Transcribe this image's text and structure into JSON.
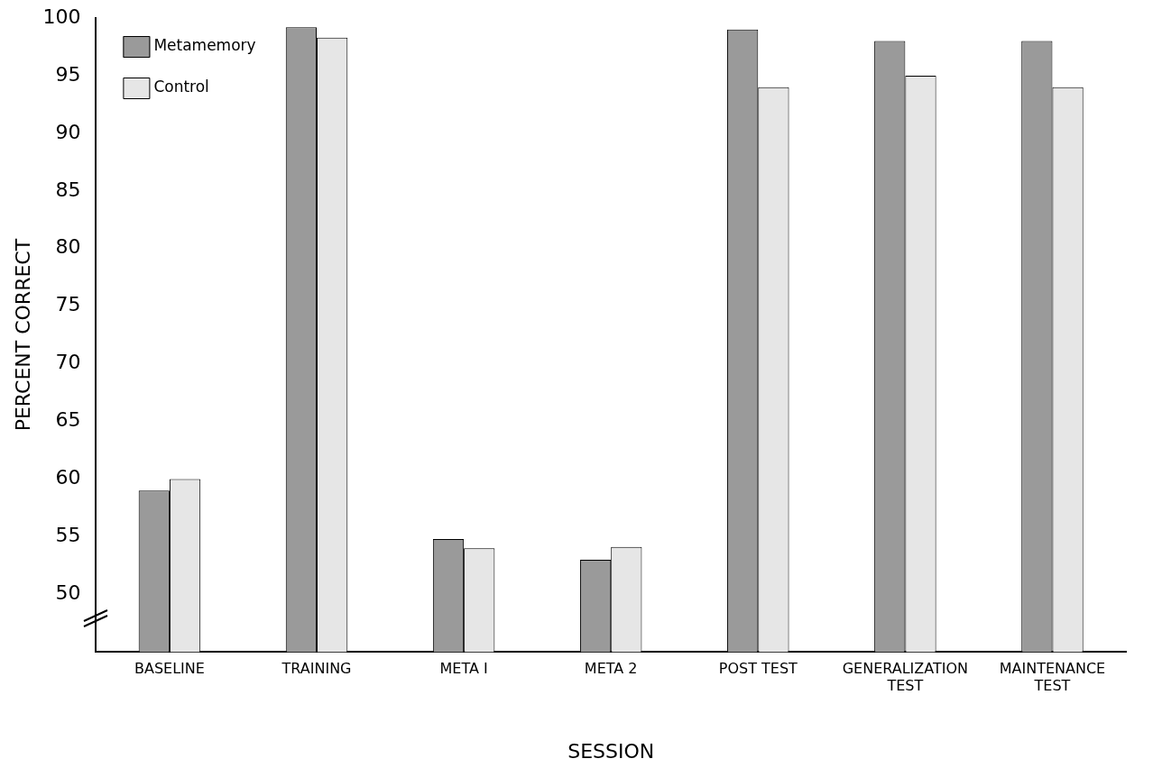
{
  "chart_data": {
    "type": "bar",
    "xlabel": "SESSION",
    "ylabel": "PERCENT CORRECT",
    "categories": [
      "BASELINE",
      "TRAINING",
      "META I",
      "META 2",
      "POST TEST",
      "GENERALIZATION TEST",
      "MAINTENANCE TEST"
    ],
    "series": [
      {
        "name": "Metamemory",
        "color": "#9a9a9a",
        "values": [
          59,
          99.2,
          54.8,
          53,
          99,
          98,
          98
        ]
      },
      {
        "name": "Control",
        "color": "#e6e6e6",
        "values": [
          60,
          98.3,
          54,
          54.1,
          94,
          95,
          94
        ]
      }
    ],
    "ylim": [
      45,
      100
    ],
    "yticks": [
      50,
      55,
      60,
      65,
      70,
      75,
      80,
      85,
      90,
      95,
      100
    ],
    "grid": false,
    "legend": "top left"
  }
}
